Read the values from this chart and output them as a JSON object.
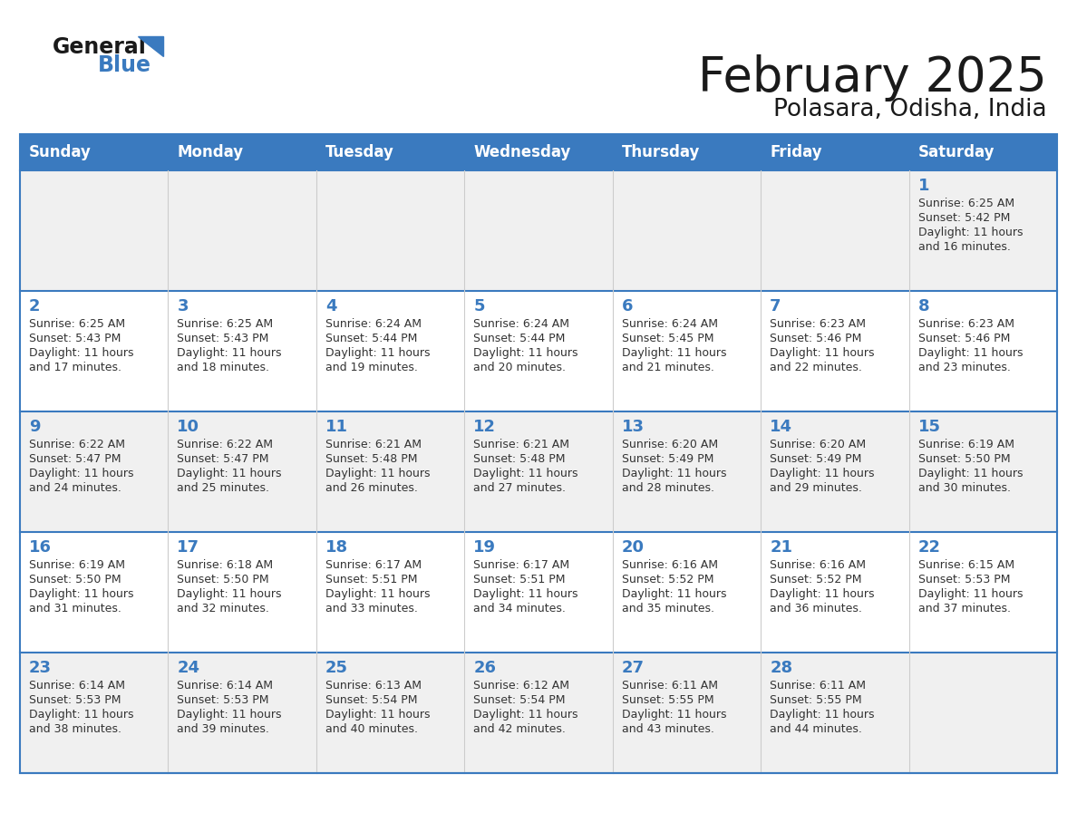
{
  "title": "February 2025",
  "subtitle": "Polasara, Odisha, India",
  "days_of_week": [
    "Sunday",
    "Monday",
    "Tuesday",
    "Wednesday",
    "Thursday",
    "Friday",
    "Saturday"
  ],
  "header_bg": "#3a7abf",
  "header_text": "#ffffff",
  "row_bg_even": "#f0f0f0",
  "row_bg_odd": "#ffffff",
  "border_color": "#3a7abf",
  "day_number_color": "#3a7abf",
  "cell_text_color": "#333333",
  "calendar_data": [
    [
      null,
      null,
      null,
      null,
      null,
      null,
      {
        "day": 1,
        "sunrise": "6:25 AM",
        "sunset": "5:42 PM",
        "daylight": "11 hours and 16 minutes."
      }
    ],
    [
      {
        "day": 2,
        "sunrise": "6:25 AM",
        "sunset": "5:43 PM",
        "daylight": "11 hours and 17 minutes."
      },
      {
        "day": 3,
        "sunrise": "6:25 AM",
        "sunset": "5:43 PM",
        "daylight": "11 hours and 18 minutes."
      },
      {
        "day": 4,
        "sunrise": "6:24 AM",
        "sunset": "5:44 PM",
        "daylight": "11 hours and 19 minutes."
      },
      {
        "day": 5,
        "sunrise": "6:24 AM",
        "sunset": "5:44 PM",
        "daylight": "11 hours and 20 minutes."
      },
      {
        "day": 6,
        "sunrise": "6:24 AM",
        "sunset": "5:45 PM",
        "daylight": "11 hours and 21 minutes."
      },
      {
        "day": 7,
        "sunrise": "6:23 AM",
        "sunset": "5:46 PM",
        "daylight": "11 hours and 22 minutes."
      },
      {
        "day": 8,
        "sunrise": "6:23 AM",
        "sunset": "5:46 PM",
        "daylight": "11 hours and 23 minutes."
      }
    ],
    [
      {
        "day": 9,
        "sunrise": "6:22 AM",
        "sunset": "5:47 PM",
        "daylight": "11 hours and 24 minutes."
      },
      {
        "day": 10,
        "sunrise": "6:22 AM",
        "sunset": "5:47 PM",
        "daylight": "11 hours and 25 minutes."
      },
      {
        "day": 11,
        "sunrise": "6:21 AM",
        "sunset": "5:48 PM",
        "daylight": "11 hours and 26 minutes."
      },
      {
        "day": 12,
        "sunrise": "6:21 AM",
        "sunset": "5:48 PM",
        "daylight": "11 hours and 27 minutes."
      },
      {
        "day": 13,
        "sunrise": "6:20 AM",
        "sunset": "5:49 PM",
        "daylight": "11 hours and 28 minutes."
      },
      {
        "day": 14,
        "sunrise": "6:20 AM",
        "sunset": "5:49 PM",
        "daylight": "11 hours and 29 minutes."
      },
      {
        "day": 15,
        "sunrise": "6:19 AM",
        "sunset": "5:50 PM",
        "daylight": "11 hours and 30 minutes."
      }
    ],
    [
      {
        "day": 16,
        "sunrise": "6:19 AM",
        "sunset": "5:50 PM",
        "daylight": "11 hours and 31 minutes."
      },
      {
        "day": 17,
        "sunrise": "6:18 AM",
        "sunset": "5:50 PM",
        "daylight": "11 hours and 32 minutes."
      },
      {
        "day": 18,
        "sunrise": "6:17 AM",
        "sunset": "5:51 PM",
        "daylight": "11 hours and 33 minutes."
      },
      {
        "day": 19,
        "sunrise": "6:17 AM",
        "sunset": "5:51 PM",
        "daylight": "11 hours and 34 minutes."
      },
      {
        "day": 20,
        "sunrise": "6:16 AM",
        "sunset": "5:52 PM",
        "daylight": "11 hours and 35 minutes."
      },
      {
        "day": 21,
        "sunrise": "6:16 AM",
        "sunset": "5:52 PM",
        "daylight": "11 hours and 36 minutes."
      },
      {
        "day": 22,
        "sunrise": "6:15 AM",
        "sunset": "5:53 PM",
        "daylight": "11 hours and 37 minutes."
      }
    ],
    [
      {
        "day": 23,
        "sunrise": "6:14 AM",
        "sunset": "5:53 PM",
        "daylight": "11 hours and 38 minutes."
      },
      {
        "day": 24,
        "sunrise": "6:14 AM",
        "sunset": "5:53 PM",
        "daylight": "11 hours and 39 minutes."
      },
      {
        "day": 25,
        "sunrise": "6:13 AM",
        "sunset": "5:54 PM",
        "daylight": "11 hours and 40 minutes."
      },
      {
        "day": 26,
        "sunrise": "6:12 AM",
        "sunset": "5:54 PM",
        "daylight": "11 hours and 42 minutes."
      },
      {
        "day": 27,
        "sunrise": "6:11 AM",
        "sunset": "5:55 PM",
        "daylight": "11 hours and 43 minutes."
      },
      {
        "day": 28,
        "sunrise": "6:11 AM",
        "sunset": "5:55 PM",
        "daylight": "11 hours and 44 minutes."
      },
      null
    ]
  ]
}
